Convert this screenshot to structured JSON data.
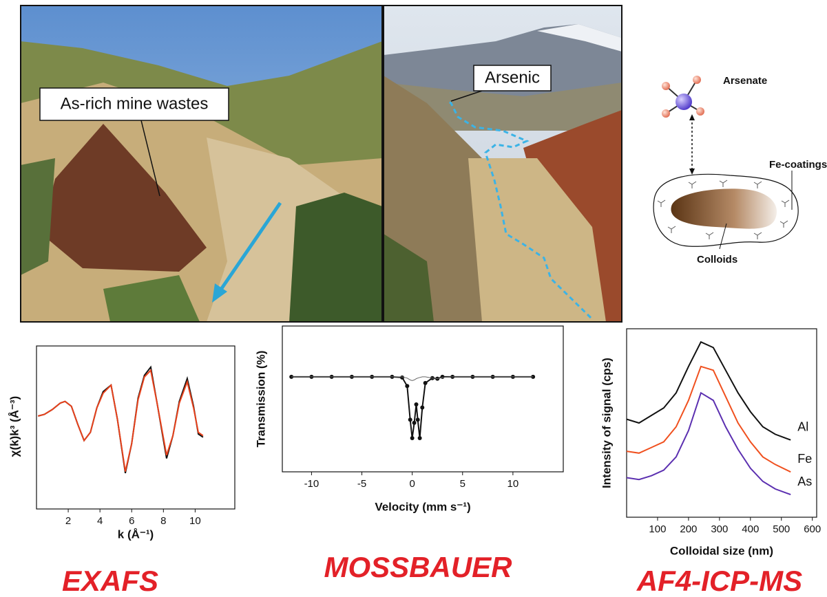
{
  "photos": {
    "left_label": "As-rich mine wastes",
    "right_label": "Arsenic"
  },
  "diagram": {
    "arsenate": "Arsenate",
    "coatings": "Fe-coatings",
    "colloids": "Colloids"
  },
  "chart_data": [
    {
      "type": "line",
      "x_label": "k (Å⁻¹)",
      "y_label": "χ(k)k³ (Å⁻³)",
      "x": [
        0.1,
        0.5,
        1,
        1.5,
        1.8,
        2.2,
        2.6,
        3,
        3.4,
        3.8,
        4.2,
        4.7,
        5.1,
        5.6,
        6.0,
        6.4,
        6.8,
        7.2,
        7.6,
        8.2,
        8.6,
        9.0,
        9.5,
        9.9,
        10.2,
        10.5
      ],
      "series": [
        {
          "color": "#111111",
          "values": [
            0.7,
            0.8,
            1.1,
            1.5,
            1.6,
            1.3,
            0.2,
            -0.8,
            -0.3,
            1.2,
            2.2,
            2.6,
            0.5,
            -2.8,
            -1.0,
            1.8,
            3.2,
            3.7,
            1.5,
            -1.9,
            -0.5,
            1.6,
            3.0,
            1.3,
            -0.4,
            -0.6
          ]
        },
        {
          "color": "#e8421c",
          "values": [
            0.7,
            0.8,
            1.1,
            1.5,
            1.6,
            1.3,
            0.2,
            -0.8,
            -0.3,
            1.2,
            2.1,
            2.6,
            0.5,
            -2.7,
            -1.0,
            1.7,
            3.1,
            3.5,
            1.5,
            -1.7,
            -0.5,
            1.5,
            2.8,
            1.2,
            -0.3,
            -0.5
          ]
        }
      ],
      "xlim": [
        0,
        12.5
      ],
      "ylim": [
        -5,
        5
      ],
      "xticks": [
        2,
        4,
        6,
        8,
        10
      ]
    },
    {
      "type": "line",
      "markers": true,
      "x_label": "Velocity (mm s⁻¹)",
      "y_label": "Transmission (%)",
      "x": [
        -12,
        -10,
        -8,
        -6,
        -4,
        -2,
        -1,
        -0.5,
        -0.2,
        0,
        0.2,
        0.4,
        0.55,
        0.75,
        1,
        1.3,
        2,
        2.5,
        3,
        4,
        6,
        8,
        10,
        12
      ],
      "series": [
        {
          "color": "#111111",
          "values": [
            1,
            1,
            1,
            1,
            1,
            1,
            0.999,
            0.985,
            0.93,
            0.9,
            0.925,
            0.955,
            0.93,
            0.9,
            0.95,
            0.99,
            0.998,
            0.997,
            1,
            1,
            1,
            1,
            1,
            1
          ]
        },
        {
          "color": "#666666",
          "values": [
            1,
            1,
            1,
            1,
            1,
            1,
            1,
            0.998,
            0.995,
            0.994,
            0.995,
            0.997,
            0.998,
            0.999,
            1,
            1,
            0.998,
            0.997,
            0.999,
            1,
            1,
            1,
            1,
            1
          ]
        }
      ],
      "xlim": [
        -12.9,
        15
      ],
      "ylim": [
        0.845,
        1.083
      ],
      "xticks": [
        -10,
        -5,
        0,
        5,
        10
      ]
    },
    {
      "type": "line",
      "x_label": "Colloidal size (nm)",
      "y_label": "Intensity of signal (cps)",
      "x": [
        0,
        40,
        80,
        120,
        160,
        200,
        240,
        280,
        320,
        360,
        400,
        440,
        480,
        530
      ],
      "series": [
        {
          "name": "Al",
          "color": "#111111",
          "values": [
            52,
            50,
            54,
            58,
            66,
            80,
            93,
            90,
            78,
            66,
            56,
            48,
            44,
            41
          ]
        },
        {
          "name": "Fe",
          "color": "#f0501e",
          "values": [
            35,
            34,
            37,
            40,
            48,
            62,
            80,
            78,
            64,
            50,
            40,
            32,
            28,
            24
          ]
        },
        {
          "name": "As",
          "color": "#5b2fb0",
          "values": [
            21,
            20,
            22,
            25,
            32,
            46,
            66,
            62,
            48,
            36,
            26,
            19,
            15,
            12
          ]
        }
      ],
      "xlim": [
        0,
        614
      ],
      "ylim": [
        0,
        100
      ],
      "xticks": [
        100,
        200,
        300,
        400,
        500,
        600
      ]
    }
  ],
  "captions": [
    "EXAFS",
    "MOSSBAUER",
    "AF4-ICP-MS"
  ]
}
